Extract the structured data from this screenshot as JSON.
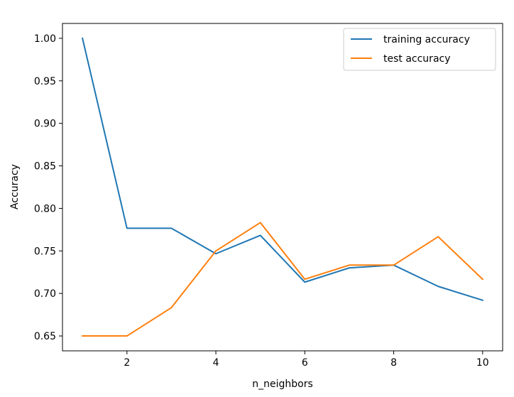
{
  "chart_data": {
    "type": "line",
    "xlabel": "n_neighbors",
    "ylabel": "Accuracy",
    "xlim": [
      0.55,
      10.45
    ],
    "ylim": [
      0.6325,
      1.0175
    ],
    "xticks": [
      2,
      4,
      6,
      8,
      10
    ],
    "yticks": [
      0.65,
      0.7,
      0.75,
      0.8,
      0.85,
      0.9,
      0.95,
      1.0
    ],
    "ytick_labels": [
      "0.65",
      "0.70",
      "0.75",
      "0.80",
      "0.85",
      "0.90",
      "0.95",
      "1.00"
    ],
    "x": [
      1,
      2,
      3,
      4,
      5,
      6,
      7,
      8,
      9,
      10
    ],
    "series": [
      {
        "name": "training accuracy",
        "color": "#1f77b4",
        "values": [
          1.0,
          0.7767,
          0.7767,
          0.7467,
          0.7683,
          0.7133,
          0.73,
          0.7333,
          0.7083,
          0.692
        ]
      },
      {
        "name": "test accuracy",
        "color": "#ff7f0e",
        "values": [
          0.65,
          0.65,
          0.6833,
          0.75,
          0.7833,
          0.7167,
          0.7333,
          0.7333,
          0.7667,
          0.7167
        ]
      }
    ],
    "legend_position": "upper right",
    "grid": false
  }
}
